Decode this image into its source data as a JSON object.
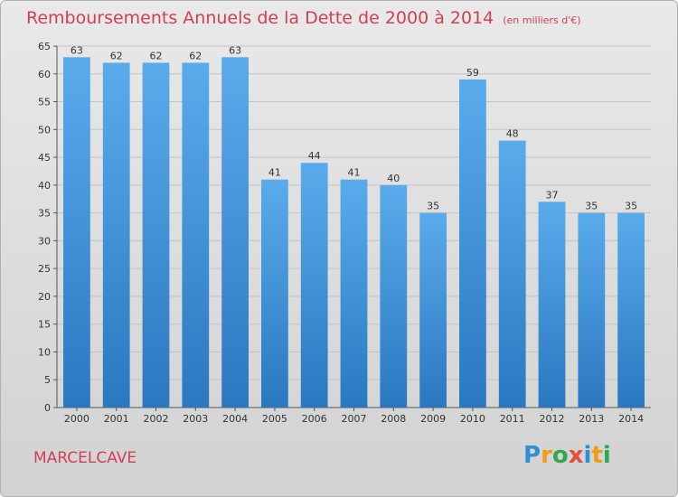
{
  "chart_data": {
    "type": "bar",
    "title": "Remboursements Annuels de la Dette de 2000 à 2014",
    "unit_note": "(en milliers d'€)",
    "categories": [
      "2000",
      "2001",
      "2002",
      "2003",
      "2004",
      "2005",
      "2006",
      "2007",
      "2008",
      "2009",
      "2010",
      "2011",
      "2012",
      "2013",
      "2014"
    ],
    "values": [
      63,
      62,
      62,
      62,
      63,
      41,
      44,
      41,
      40,
      35,
      59,
      48,
      37,
      35,
      35
    ],
    "ylim": [
      0,
      65
    ],
    "yticks": [
      0,
      5,
      10,
      15,
      20,
      25,
      30,
      35,
      40,
      45,
      50,
      55,
      60,
      65
    ],
    "grid": true,
    "data_labels": true,
    "bar_color_top": "#5aabec",
    "bar_color_bottom": "#2a78c0"
  },
  "place_name": "MARCELCAVE",
  "logo": {
    "text": "Proxiti",
    "letters": [
      "P",
      "r",
      "o",
      "x",
      "i",
      "t",
      "i"
    ],
    "colors": [
      "#2f8fd4",
      "#f39c12",
      "#2fa84f",
      "#e74c3c",
      "#2f8fd4",
      "#f39c12",
      "#2fa84f"
    ]
  }
}
